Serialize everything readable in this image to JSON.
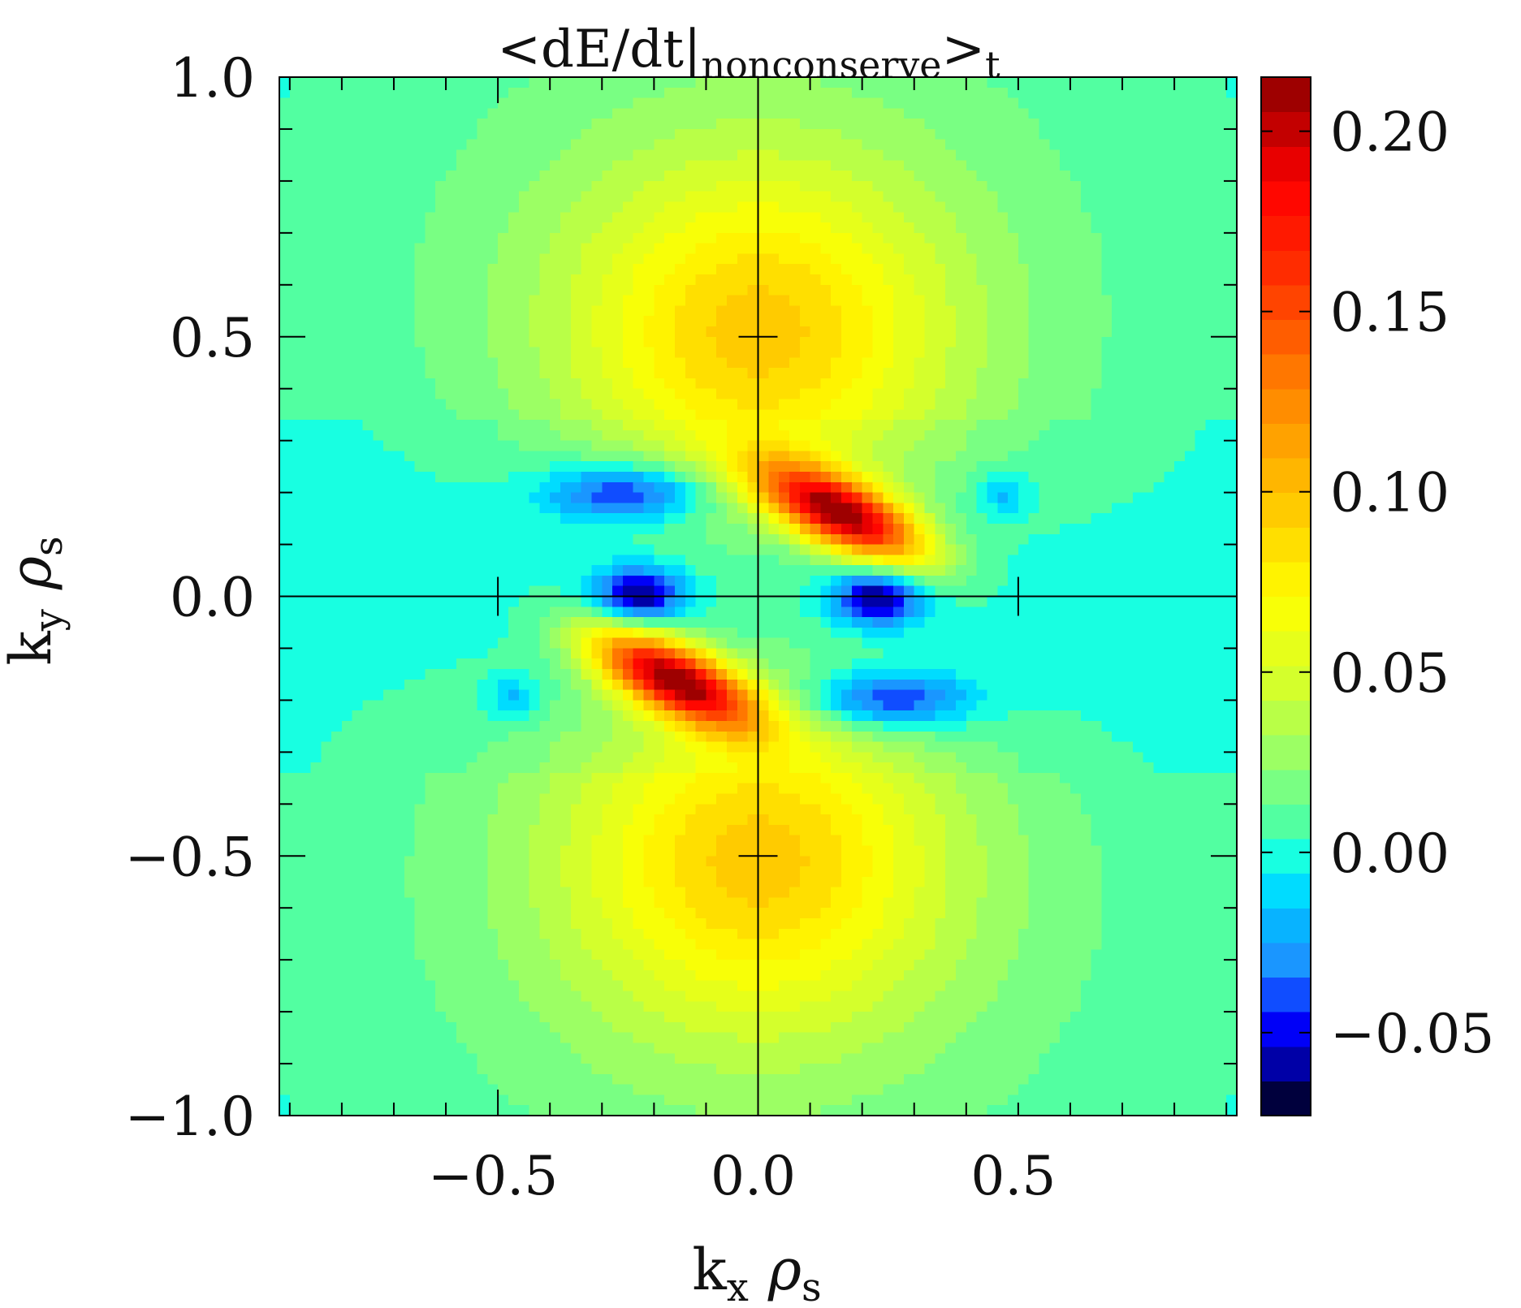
{
  "chart_data": {
    "type": "heatmap",
    "title": "<dE/dt|nonconserve>t",
    "title_parts": {
      "lead": "<dE/dt|",
      "sub": "nonconserve",
      "close": ">",
      "outer_sub": "t"
    },
    "xlabel": "kx ρs",
    "xlabel_parts": {
      "base": "k",
      "sub": "x",
      "rho": "ρ",
      "rho_sub": "s"
    },
    "ylabel": "ky ρs",
    "ylabel_parts": {
      "base": "k",
      "sub": "y",
      "rho": "ρ",
      "rho_sub": "s"
    },
    "xlim": [
      -0.92,
      0.92
    ],
    "ylim": [
      -1.0,
      1.0
    ],
    "x_ticks": [
      -0.5,
      0.0,
      0.5
    ],
    "x_tick_labels": [
      "−0.5",
      "0.0",
      "0.5"
    ],
    "y_ticks": [
      -1.0,
      -0.5,
      0.0,
      0.5,
      1.0
    ],
    "y_tick_labels": [
      "−1.0",
      "−0.5",
      "0.0",
      "0.5",
      "1.0"
    ],
    "zlim": [
      -0.073,
      0.215
    ],
    "colorbar_ticks": [
      -0.05,
      0.0,
      0.05,
      0.1,
      0.15,
      0.2
    ],
    "colorbar_tick_labels": [
      "−0.05",
      "0.00",
      "0.05",
      "0.10",
      "0.15",
      "0.20"
    ],
    "colormap": [
      "#000000",
      "#00008b",
      "#0000ff",
      "#1e90ff",
      "#00bfff",
      "#00ffff",
      "#40ffb0",
      "#90ff70",
      "#d0ff30",
      "#ffff00",
      "#ffc000",
      "#ff8000",
      "#ff3000",
      "#ff0000",
      "#8b0000"
    ],
    "grid": false,
    "features": [
      {
        "kx": 0.12,
        "ky": 0.2,
        "value": 0.215
      },
      {
        "kx": -0.12,
        "ky": -0.2,
        "value": 0.215
      },
      {
        "kx": -0.23,
        "ky": 0.2,
        "value": -0.065
      },
      {
        "kx": 0.23,
        "ky": -0.2,
        "value": -0.065
      },
      {
        "kx": -0.23,
        "ky": 0.0,
        "value": -0.073
      },
      {
        "kx": 0.23,
        "ky": 0.0,
        "value": -0.073
      },
      {
        "kx": 0.0,
        "ky": 0.5,
        "value": 0.068
      },
      {
        "kx": 0.0,
        "ky": -0.5,
        "value": 0.068
      },
      {
        "kx": 0.46,
        "ky": 0.2,
        "value": -0.03
      },
      {
        "kx": -0.46,
        "ky": -0.2,
        "value": -0.03
      }
    ]
  }
}
